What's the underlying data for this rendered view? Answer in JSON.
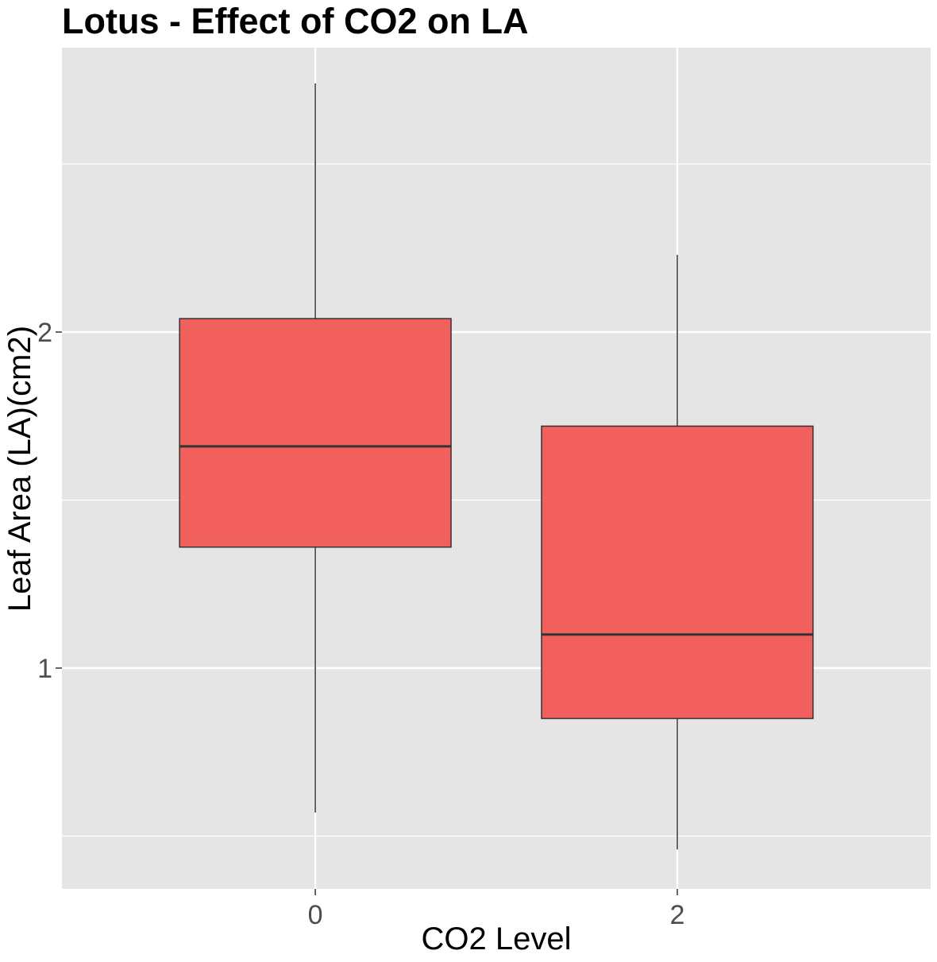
{
  "chart_data": {
    "type": "box",
    "title": "Lotus - Effect of CO2 on LA",
    "xlabel": "CO2 Level",
    "ylabel": "Leaf Area (LA)(cm2)",
    "categories": [
      "0",
      "2"
    ],
    "y_ticks": [
      1,
      2
    ],
    "ylim": [
      0.35,
      2.85
    ],
    "grid": true,
    "colors": {
      "panel": "#e5e5e5",
      "grid": "#ffffff",
      "box_fill": "#f1605d",
      "box_stroke": "#333333",
      "tick_text": "#4d4d4d"
    },
    "boxes": [
      {
        "category": "0",
        "lower_whisker": 0.57,
        "q1": 1.36,
        "median": 1.66,
        "q3": 2.04,
        "upper_whisker": 2.74
      },
      {
        "category": "2",
        "lower_whisker": 0.46,
        "q1": 0.85,
        "median": 1.1,
        "q3": 1.72,
        "upper_whisker": 2.23
      }
    ]
  }
}
